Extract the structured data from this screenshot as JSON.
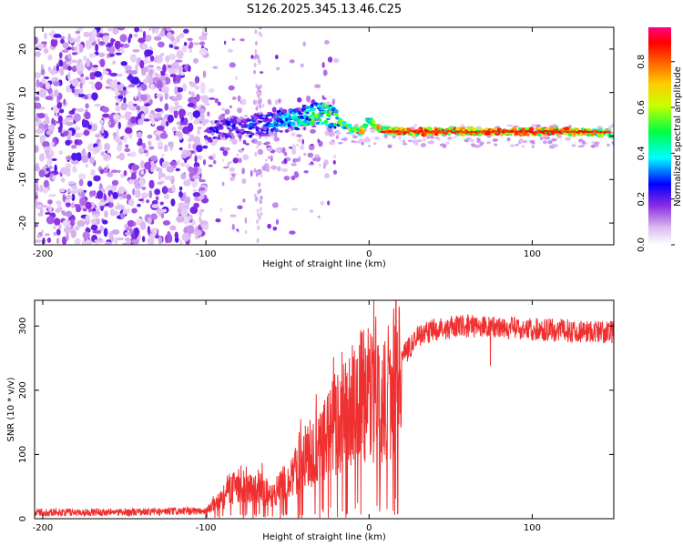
{
  "title": "S126.2025.345.13.46.C25",
  "chart_data": [
    {
      "type": "heatmap",
      "name": "spectrogram",
      "xlabel": "Height of straight line (km)",
      "ylabel": "Frequency (Hz)",
      "xlim": [
        -205,
        150
      ],
      "ylim": [
        -25,
        25
      ],
      "xticks": [
        -200,
        -100,
        0,
        100
      ],
      "yticks": [
        -20,
        -10,
        0,
        10,
        20
      ],
      "colorbar": {
        "label": "Normalized spectral amplitude",
        "range": [
          0.0,
          0.95
        ],
        "ticks": [
          0.0,
          0.2,
          0.4,
          0.6,
          0.8
        ],
        "tick_labels": [
          "0.0",
          "0.2",
          "0.4",
          "0.6",
          "0.8"
        ],
        "colormap": [
          "#ffffff",
          "#d9b8f0",
          "#8a2be2",
          "#0000ff",
          "#00ffff",
          "#00ff00",
          "#ffff00",
          "#ff8000",
          "#ff0000",
          "#ff0080"
        ]
      },
      "signal_track": [
        {
          "x": -100,
          "freq": 1,
          "amp": 0.25
        },
        {
          "x": -80,
          "freq": 2,
          "amp": 0.3
        },
        {
          "x": -60,
          "freq": 3,
          "amp": 0.35
        },
        {
          "x": -45,
          "freq": 4,
          "amp": 0.45
        },
        {
          "x": -35,
          "freq": 5,
          "amp": 0.55
        },
        {
          "x": -25,
          "freq": 5,
          "amp": 0.6
        },
        {
          "x": -18,
          "freq": 3,
          "amp": 0.6
        },
        {
          "x": -10,
          "freq": 1.5,
          "amp": 0.7
        },
        {
          "x": -5,
          "freq": 1,
          "amp": 0.8
        },
        {
          "x": 0,
          "freq": 4,
          "amp": 0.5
        },
        {
          "x": 5,
          "freq": 1.5,
          "amp": 0.75
        },
        {
          "x": 20,
          "freq": 1,
          "amp": 0.85
        },
        {
          "x": 60,
          "freq": 1,
          "amp": 0.9
        },
        {
          "x": 100,
          "freq": 1,
          "amp": 0.9
        },
        {
          "x": 130,
          "freq": 1,
          "amp": 0.85
        },
        {
          "x": 150,
          "freq": 0.5,
          "amp": 0.6
        }
      ]
    },
    {
      "type": "line",
      "name": "snr",
      "xlabel": "Height of straight line (km)",
      "ylabel": "SNR (10 * v/v)",
      "xlim": [
        -205,
        150
      ],
      "ylim": [
        0,
        340
      ],
      "xticks": [
        -200,
        -100,
        0,
        100
      ],
      "yticks": [
        0,
        100,
        200,
        300
      ],
      "color": "#f03030",
      "series_envelope": [
        {
          "x": -205,
          "y": 10
        },
        {
          "x": -150,
          "y": 10
        },
        {
          "x": -100,
          "y": 12
        },
        {
          "x": -90,
          "y": 30
        },
        {
          "x": -80,
          "y": 55
        },
        {
          "x": -70,
          "y": 55
        },
        {
          "x": -60,
          "y": 35
        },
        {
          "x": -50,
          "y": 60
        },
        {
          "x": -40,
          "y": 100
        },
        {
          "x": -30,
          "y": 110
        },
        {
          "x": -20,
          "y": 150
        },
        {
          "x": -10,
          "y": 180
        },
        {
          "x": 0,
          "y": 200
        },
        {
          "x": 10,
          "y": 160
        },
        {
          "x": 15,
          "y": 215
        },
        {
          "x": 20,
          "y": 250
        },
        {
          "x": 30,
          "y": 285
        },
        {
          "x": 40,
          "y": 295
        },
        {
          "x": 60,
          "y": 300
        },
        {
          "x": 100,
          "y": 295
        },
        {
          "x": 150,
          "y": 290
        }
      ]
    }
  ]
}
